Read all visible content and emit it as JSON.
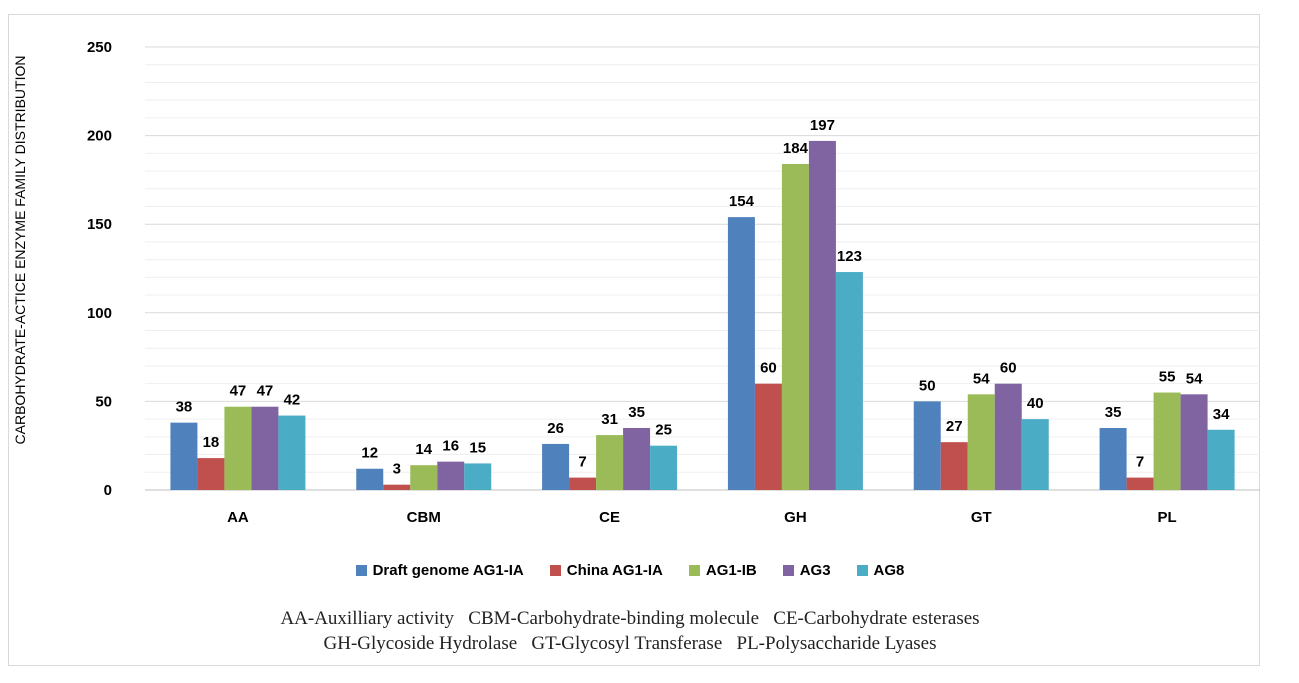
{
  "chart_data": {
    "type": "bar",
    "title": "",
    "xlabel": "",
    "ylabel": "CARBOHYDRATE-ACTICE ENZYME FAMILY DISTRIBUTION",
    "ylim": [
      0,
      250
    ],
    "yticks": [
      0,
      50,
      100,
      150,
      200,
      250
    ],
    "grid": true,
    "legend_position": "bottom",
    "categories": [
      "AA",
      "CBM",
      "CE",
      "GH",
      "GT",
      "PL"
    ],
    "series": [
      {
        "name": "Draft genome AG1-IA",
        "color": "#4f81bd",
        "values": [
          38,
          12,
          26,
          154,
          50,
          35
        ]
      },
      {
        "name": "China AG1-IA",
        "color": "#c0504d",
        "values": [
          18,
          3,
          7,
          60,
          27,
          7
        ]
      },
      {
        "name": "AG1-IB",
        "color": "#9bbb59",
        "values": [
          47,
          14,
          31,
          184,
          54,
          55
        ]
      },
      {
        "name": "AG3",
        "color": "#8064a2",
        "values": [
          47,
          16,
          35,
          197,
          60,
          54
        ]
      },
      {
        "name": "AG8",
        "color": "#4bacc6",
        "values": [
          42,
          15,
          25,
          123,
          40,
          34
        ]
      }
    ]
  },
  "notes": {
    "line1": "AA-Auxilliary activity   CBM-Carbohydrate-binding molecule   CE-Carbohydrate esterases",
    "line2": "GH-Glycoside Hydrolase   GT-Glycosyl Transferase   PL-Polysaccharide Lyases"
  }
}
